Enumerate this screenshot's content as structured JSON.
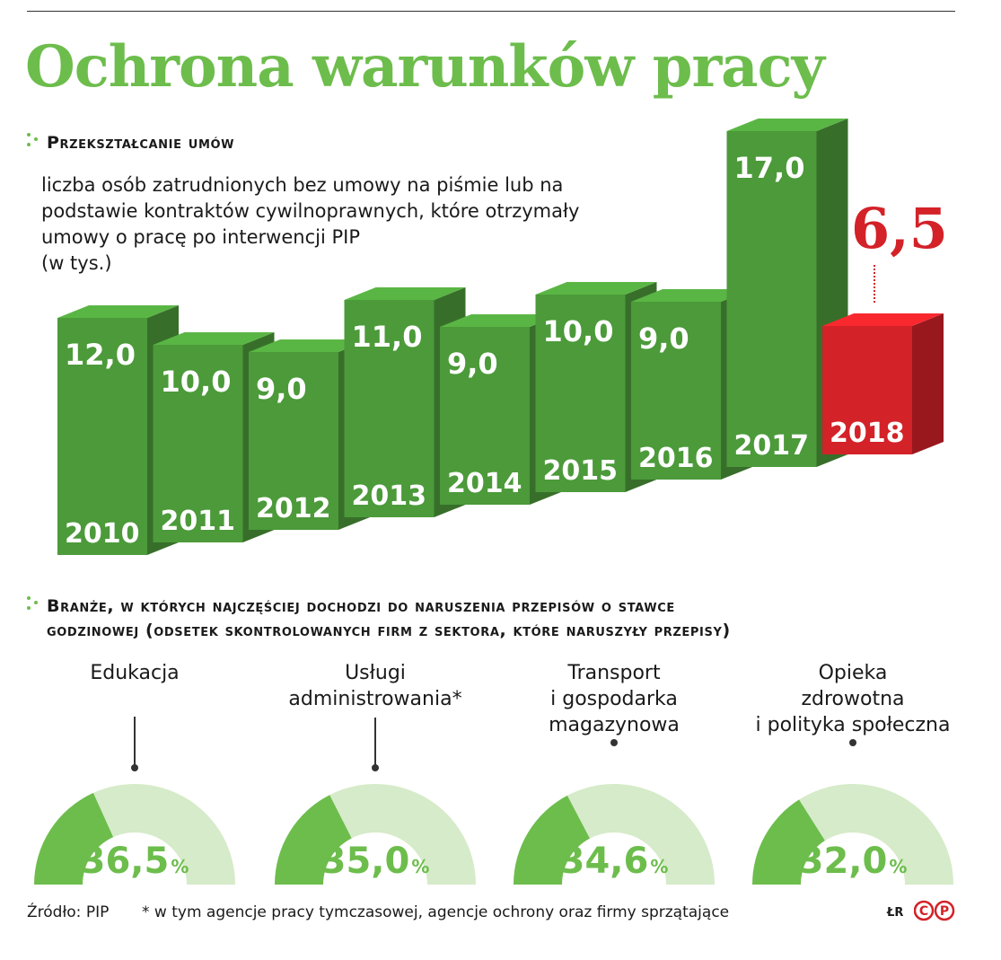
{
  "title": "Ochrona warunków pracy",
  "section1": {
    "heading": "Przekształcanie umów",
    "description": "liczba osób zatrudnionych bez umowy na piśmie lub na\npodstawie kontraktów cywilnoprawnych, które otrzymały\numowy o pracę po interwencji PIP\n(w tys.)",
    "highlight_value": "6,5"
  },
  "section2": {
    "heading": "Branże, w których najczęściej dochodzi do naruszenia przepisów o stawce\ngodzinowej (odsetek skontrolowanych firm z sektora, które naruszyły przepisy)"
  },
  "colors": {
    "green": "#6dbd4c",
    "bar_green": "#4c9a3a",
    "red": "#d32228",
    "light_green": "#d6ebc9"
  },
  "chart_data": [
    {
      "type": "bar",
      "title": "Przekształcanie umów",
      "categories": [
        "2010",
        "2011",
        "2012",
        "2013",
        "2014",
        "2015",
        "2016",
        "2017",
        "2018"
      ],
      "values": [
        12.0,
        10.0,
        9.0,
        11.0,
        9.0,
        10.0,
        9.0,
        17.0,
        6.5
      ],
      "value_labels": [
        "12,0",
        "10,0",
        "9,0",
        "11,0",
        "9,0",
        "10,0",
        "9,0",
        "17,0",
        "6,5"
      ],
      "highlight_category": "2018",
      "unit": "w tys."
    },
    {
      "type": "pie",
      "title": "Branże, w których najczęściej dochodzi do naruszenia przepisów o stawce godzinowej",
      "unit": "%",
      "categories": [
        "Edukacja",
        "Usługi\nadministrowania*",
        "Transport\ni gospodarka\nmagazynowa",
        "Opieka\nzdrowotna\ni polityka społeczna"
      ],
      "values": [
        36.5,
        35.0,
        34.6,
        32.0
      ],
      "value_labels": [
        "36,5",
        "35,0",
        "34,6",
        "32,0"
      ],
      "pct_symbol": "%"
    }
  ],
  "footer": {
    "source": "Źródło: PIP",
    "footnote": "* w tym agencje pracy tymczasowej, agencje ochrony oraz firmy sprzątające",
    "credit": "ŁR",
    "logo_text": "CP"
  }
}
